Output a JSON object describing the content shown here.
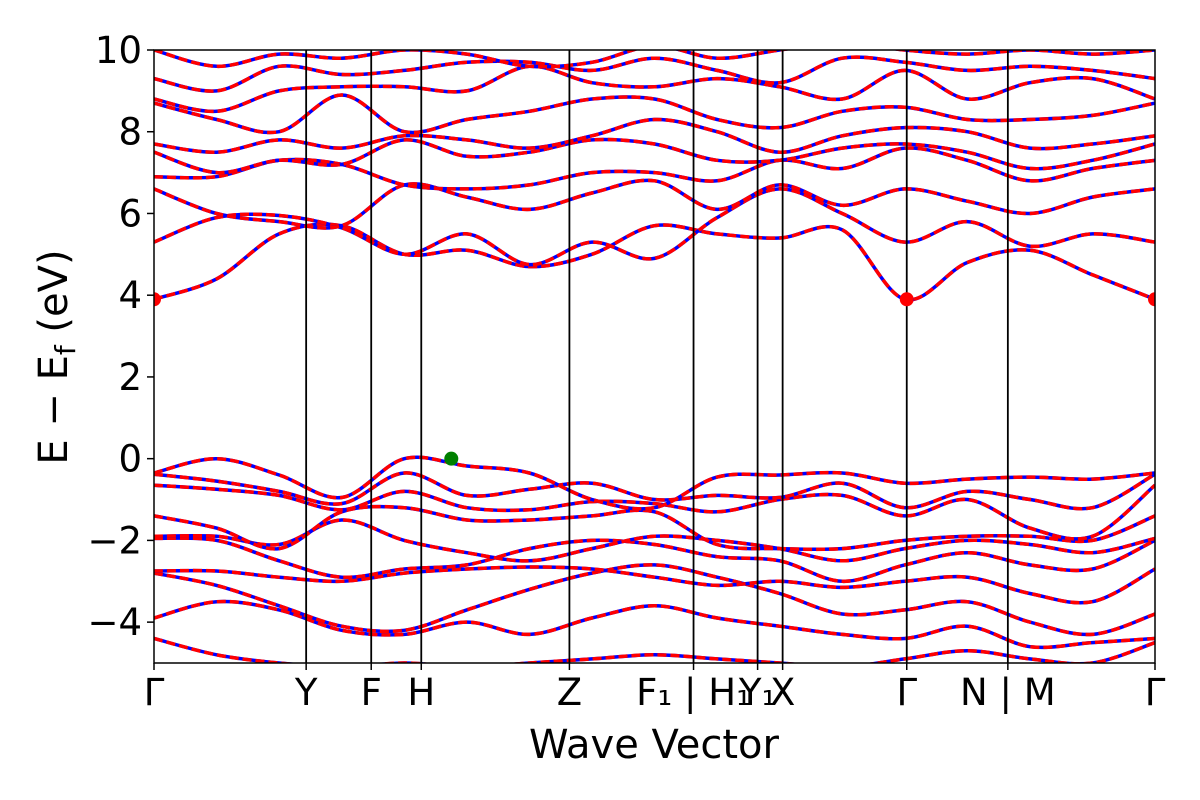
{
  "chart_data": {
    "type": "line",
    "xlabel": "Wave Vector",
    "ylabel": "E − E",
    "ylabel_sub": "f",
    "ylabel_unit": " (eV)",
    "ylim": [
      -5,
      10
    ],
    "xlim": [
      0,
      1
    ],
    "yticks": [
      -4,
      -2,
      0,
      2,
      4,
      6,
      8,
      10
    ],
    "ytick_labels": [
      "−4",
      "−2",
      "0",
      "2",
      "4",
      "6",
      "8",
      "10"
    ],
    "kpoints": [
      {
        "label": "Γ",
        "x": 0.0
      },
      {
        "label": "Y",
        "x": 0.152
      },
      {
        "label": "F",
        "x": 0.217
      },
      {
        "label": "H",
        "x": 0.267
      },
      {
        "label": "Z",
        "x": 0.415
      },
      {
        "label": "F₁ | H₁",
        "x": 0.539
      },
      {
        "label": "Y₁",
        "x": 0.603
      },
      {
        "label": "X",
        "x": 0.628
      },
      {
        "label": "Γ",
        "x": 0.752
      },
      {
        "label": "N | M",
        "x": 0.853
      },
      {
        "label": "Γ",
        "x": 1.0
      }
    ],
    "line_colors": {
      "dft": "#0000ff",
      "wannier": "#ff0000"
    },
    "vbm_marker": {
      "x": 0.297,
      "y": 0.0,
      "color": "#008000"
    },
    "cbm_markers": [
      {
        "x": 0.0,
        "y": 3.9,
        "color": "#ff0000"
      },
      {
        "x": 0.752,
        "y": 3.9,
        "color": "#ff0000"
      },
      {
        "x": 1.0,
        "y": 3.9,
        "color": "#ff0000"
      }
    ],
    "bands": [
      {
        "y": [
          -4.4,
          -4.8,
          -5.0,
          -5.1,
          -5.0,
          -5.1,
          -5.0,
          -4.9,
          -4.8,
          -4.9,
          -5.0,
          -5.1,
          -4.9,
          -4.7,
          -4.9,
          -5.0,
          -4.5
        ]
      },
      {
        "y": [
          -3.9,
          -3.5,
          -3.7,
          -4.2,
          -4.3,
          -4.0,
          -4.3,
          -3.9,
          -3.6,
          -3.9,
          -4.1,
          -4.3,
          -4.4,
          -4.1,
          -4.6,
          -4.5,
          -4.4
        ]
      },
      {
        "y": [
          -2.8,
          -3.1,
          -3.6,
          -4.1,
          -4.2,
          -3.7,
          -3.2,
          -2.8,
          -2.6,
          -2.9,
          -3.3,
          -3.8,
          -3.7,
          -3.5,
          -4.0,
          -4.3,
          -3.8
        ]
      },
      {
        "y": [
          -2.75,
          -2.75,
          -2.9,
          -3.0,
          -2.8,
          -2.7,
          -2.65,
          -2.7,
          -2.9,
          -3.1,
          -3.0,
          -3.15,
          -3.0,
          -2.9,
          -3.3,
          -3.5,
          -2.7
        ]
      },
      {
        "y": [
          -1.95,
          -2.0,
          -2.5,
          -2.9,
          -2.7,
          -2.6,
          -2.2,
          -2.0,
          -2.1,
          -2.4,
          -2.5,
          -3.0,
          -2.6,
          -2.3,
          -2.6,
          -2.7,
          -2.0
        ]
      },
      {
        "y": [
          -1.9,
          -1.9,
          -2.1,
          -1.5,
          -2.0,
          -2.3,
          -2.5,
          -2.2,
          -1.9,
          -2.0,
          -2.2,
          -2.5,
          -2.2,
          -2.0,
          -2.1,
          -2.3,
          -1.95
        ]
      },
      {
        "y": [
          -1.4,
          -1.7,
          -2.2,
          -1.3,
          -1.2,
          -1.5,
          -1.5,
          -1.4,
          -1.3,
          -2.1,
          -2.2,
          -2.2,
          -2.0,
          -1.9,
          -1.9,
          -2.0,
          -1.4
        ]
      },
      {
        "y": [
          -0.65,
          -0.75,
          -0.9,
          -1.25,
          -0.8,
          -1.2,
          -1.25,
          -1.05,
          -1.1,
          -1.3,
          -1.0,
          -0.9,
          -1.4,
          -1.0,
          -1.7,
          -1.9,
          -0.65
        ]
      },
      {
        "y": [
          -0.38,
          -0.55,
          -0.8,
          -1.1,
          -0.35,
          -0.9,
          -0.75,
          -0.6,
          -1.0,
          -0.9,
          -0.95,
          -0.6,
          -1.2,
          -0.8,
          -1.0,
          -1.2,
          -0.38
        ]
      },
      {
        "y": [
          -0.35,
          0.0,
          -0.4,
          -0.95,
          0.0,
          -0.18,
          -0.35,
          -1.0,
          -1.2,
          -0.45,
          -0.4,
          -0.35,
          -0.6,
          -0.5,
          -0.45,
          -0.5,
          -0.35
        ]
      },
      {
        "y": [
          3.9,
          4.4,
          5.5,
          5.7,
          5.0,
          5.1,
          4.7,
          5.0,
          5.7,
          5.5,
          5.4,
          5.6,
          3.9,
          4.8,
          5.1,
          4.5,
          3.9
        ]
      },
      {
        "y": [
          5.3,
          5.9,
          5.95,
          5.65,
          5.0,
          5.5,
          4.75,
          5.3,
          4.9,
          5.9,
          6.6,
          6.0,
          5.3,
          5.8,
          5.2,
          5.5,
          5.3
        ]
      },
      {
        "y": [
          6.6,
          6.0,
          5.8,
          5.7,
          6.7,
          6.4,
          6.1,
          6.5,
          6.8,
          6.1,
          6.7,
          6.2,
          6.6,
          6.3,
          6.0,
          6.4,
          6.6
        ]
      },
      {
        "y": [
          6.9,
          6.9,
          7.3,
          7.2,
          6.7,
          6.6,
          6.7,
          7.0,
          7.0,
          6.8,
          7.3,
          7.1,
          7.6,
          7.3,
          6.8,
          7.1,
          7.3
        ]
      },
      {
        "y": [
          7.5,
          7.0,
          7.3,
          7.2,
          7.8,
          7.4,
          7.5,
          7.8,
          7.7,
          7.3,
          7.3,
          7.6,
          7.7,
          7.5,
          7.1,
          7.3,
          7.7
        ]
      },
      {
        "y": [
          7.7,
          7.5,
          7.8,
          7.6,
          7.9,
          7.8,
          7.6,
          7.9,
          8.3,
          8.0,
          7.5,
          7.9,
          8.1,
          8.0,
          7.6,
          7.7,
          7.9
        ]
      },
      {
        "y": [
          8.7,
          8.3,
          8.0,
          8.9,
          8.0,
          8.3,
          8.5,
          8.8,
          8.8,
          8.3,
          8.1,
          8.5,
          8.6,
          8.3,
          8.3,
          8.4,
          8.7
        ]
      },
      {
        "y": [
          8.8,
          8.5,
          9.0,
          9.1,
          9.1,
          9.0,
          9.6,
          9.2,
          9.1,
          9.3,
          9.1,
          8.8,
          9.5,
          8.8,
          9.2,
          9.3,
          8.8
        ]
      },
      {
        "y": [
          9.3,
          9.0,
          9.6,
          9.4,
          9.5,
          9.7,
          9.7,
          9.5,
          9.8,
          9.5,
          9.2,
          9.8,
          9.7,
          9.5,
          9.6,
          9.5,
          9.3
        ]
      },
      {
        "y": [
          10.0,
          9.6,
          9.9,
          9.8,
          10.0,
          9.9,
          9.6,
          9.7,
          10.1,
          9.8,
          10.0,
          10.2,
          10.0,
          9.9,
          10.0,
          9.9,
          10.0
        ]
      }
    ]
  }
}
